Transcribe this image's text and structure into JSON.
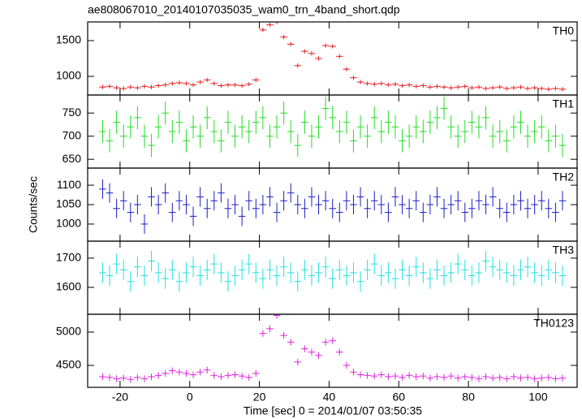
{
  "chart_data": {
    "type": "line",
    "title": "ae808067010_20140107035035_wam0_trn_4band_short.qdp",
    "xlabel": "Time [sec] 0 = 2014/01/07 03:50:35",
    "ylabel": "Counts/sec",
    "xlim": [
      -29.3,
      111.2
    ],
    "xticks": [
      -20,
      0,
      20,
      40,
      60,
      80,
      100
    ],
    "x": [
      -25,
      -23,
      -21,
      -19,
      -17,
      -15,
      -13,
      -11,
      -9,
      -7,
      -5,
      -3,
      -1,
      1,
      3,
      5,
      7,
      9,
      11,
      13,
      15,
      17,
      19,
      21,
      23,
      25,
      27,
      29,
      31,
      33,
      35,
      37,
      39,
      41,
      43,
      45,
      47,
      49,
      51,
      53,
      55,
      57,
      59,
      61,
      63,
      65,
      67,
      69,
      71,
      73,
      75,
      77,
      79,
      81,
      83,
      85,
      87,
      89,
      91,
      93,
      95,
      97,
      99,
      101,
      103,
      105,
      107
    ],
    "panels": [
      {
        "name": "TH0",
        "color": "#e8191c",
        "error": 30,
        "ylim": [
          739,
          1761
        ],
        "yticks": [
          1000,
          1500
        ],
        "values": [
          850,
          860,
          840,
          830,
          850,
          840,
          860,
          850,
          870,
          880,
          900,
          910,
          900,
          880,
          920,
          950,
          900,
          870,
          880,
          880,
          870,
          890,
          950,
          1650,
          1720,
          1760,
          1550,
          1450,
          1150,
          1350,
          1320,
          1250,
          1430,
          1420,
          1280,
          1100,
          980,
          920,
          900,
          890,
          900,
          880,
          890,
          870,
          880,
          860,
          870,
          850,
          860,
          850,
          840,
          850,
          860,
          840,
          850,
          830,
          840,
          850,
          830,
          840,
          850,
          830,
          840,
          830,
          820,
          830,
          820
        ]
      },
      {
        "name": "TH1",
        "color": "#22dd22",
        "error": 25,
        "ylim": [
          631,
          789
        ],
        "yticks": [
          650,
          700,
          750
        ],
        "values": [
          710,
          690,
          730,
          700,
          720,
          740,
          700,
          680,
          720,
          750,
          710,
          730,
          690,
          720,
          700,
          740,
          710,
          690,
          730,
          700,
          720,
          710,
          730,
          740,
          700,
          720,
          750,
          710,
          680,
          730,
          700,
          720,
          760,
          740,
          710,
          730,
          690,
          720,
          700,
          740,
          710,
          730,
          720,
          690,
          700,
          720,
          710,
          730,
          740,
          760,
          720,
          700,
          710,
          730,
          720,
          740,
          700,
          710,
          690,
          720,
          730,
          700,
          710,
          720,
          690,
          700,
          680
        ]
      },
      {
        "name": "TH2",
        "color": "#1c1cc8",
        "error": 25,
        "ylim": [
          956,
          1144
        ],
        "yticks": [
          1000,
          1050,
          1100
        ],
        "values": [
          1090,
          1080,
          1040,
          1060,
          1030,
          1050,
          1000,
          1070,
          1050,
          1080,
          1030,
          1060,
          1050,
          1020,
          1070,
          1040,
          1060,
          1080,
          1040,
          1050,
          1020,
          1060,
          1040,
          1050,
          1070,
          1030,
          1060,
          1080,
          1050,
          1040,
          1070,
          1050,
          1060,
          1040,
          1030,
          1060,
          1050,
          1070,
          1040,
          1060,
          1050,
          1030,
          1070,
          1050,
          1040,
          1060,
          1030,
          1050,
          1070,
          1040,
          1050,
          1060,
          1030,
          1040,
          1060,
          1050,
          1070,
          1040,
          1030,
          1050,
          1060,
          1040,
          1050,
          1060,
          1040,
          1030,
          1060
        ]
      },
      {
        "name": "TH3",
        "color": "#22e0e0",
        "error": 35,
        "ylim": [
          1508,
          1758
        ],
        "yticks": [
          1600,
          1700
        ],
        "values": [
          1650,
          1640,
          1680,
          1660,
          1620,
          1670,
          1640,
          1690,
          1650,
          1630,
          1660,
          1620,
          1650,
          1670,
          1640,
          1660,
          1680,
          1650,
          1620,
          1640,
          1660,
          1680,
          1650,
          1630,
          1660,
          1640,
          1670,
          1650,
          1620,
          1660,
          1640,
          1650,
          1670,
          1630,
          1660,
          1640,
          1650,
          1620,
          1660,
          1680,
          1640,
          1650,
          1630,
          1660,
          1640,
          1670,
          1650,
          1630,
          1660,
          1640,
          1650,
          1680,
          1660,
          1640,
          1650,
          1690,
          1670,
          1660,
          1650,
          1640,
          1660,
          1670,
          1650,
          1640,
          1660,
          1650,
          1640
        ]
      },
      {
        "name": "TH0123",
        "color": "#e020e0",
        "error": 50,
        "ylim": [
          4171,
          5268
        ],
        "yticks": [
          4500,
          5000
        ],
        "values": [
          4330,
          4320,
          4300,
          4310,
          4290,
          4320,
          4300,
          4330,
          4350,
          4380,
          4420,
          4400,
          4380,
          4360,
          4400,
          4430,
          4350,
          4330,
          4350,
          4360,
          4340,
          4320,
          4380,
          4980,
          5050,
          5250,
          4950,
          4850,
          4550,
          4750,
          4700,
          4650,
          4850,
          4870,
          4700,
          4500,
          4400,
          4360,
          4350,
          4340,
          4360,
          4330,
          4340,
          4320,
          4350,
          4330,
          4340,
          4310,
          4330,
          4320,
          4340,
          4310,
          4330,
          4320,
          4300,
          4330,
          4310,
          4320,
          4300,
          4330,
          4310,
          4320,
          4300,
          4310,
          4320,
          4300,
          4310
        ]
      }
    ]
  }
}
